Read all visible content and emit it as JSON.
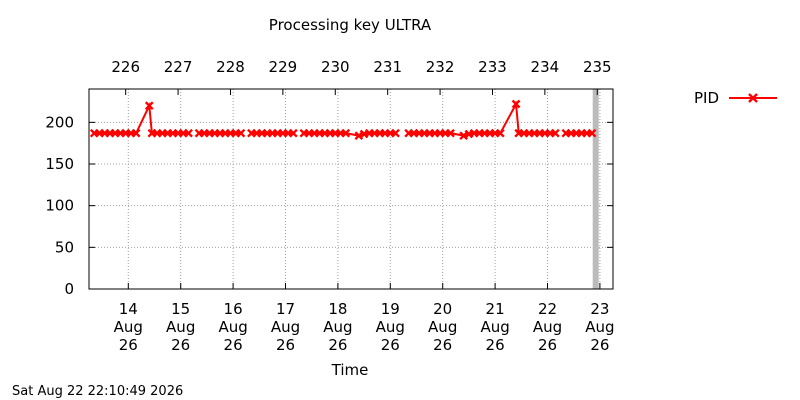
{
  "chart_data": {
    "type": "line",
    "title": "Processing key ULTRA",
    "xlabel": "Time",
    "ylabel": "",
    "ylim": [
      0,
      240
    ],
    "y_ticks": [
      0,
      50,
      100,
      150,
      200
    ],
    "xlim": [
      13.25,
      23.25
    ],
    "grid": true,
    "legend_position": "right",
    "x_ticks_bottom": [
      {
        "x": 14,
        "day": "14",
        "month": "Aug",
        "year": "26"
      },
      {
        "x": 15,
        "day": "15",
        "month": "Aug",
        "year": "26"
      },
      {
        "x": 16,
        "day": "16",
        "month": "Aug",
        "year": "26"
      },
      {
        "x": 17,
        "day": "17",
        "month": "Aug",
        "year": "26"
      },
      {
        "x": 18,
        "day": "18",
        "month": "Aug",
        "year": "26"
      },
      {
        "x": 19,
        "day": "19",
        "month": "Aug",
        "year": "26"
      },
      {
        "x": 20,
        "day": "20",
        "month": "Aug",
        "year": "26"
      },
      {
        "x": 21,
        "day": "21",
        "month": "Aug",
        "year": "26"
      },
      {
        "x": 22,
        "day": "22",
        "month": "Aug",
        "year": "26"
      },
      {
        "x": 23,
        "day": "23",
        "month": "Aug",
        "year": "26"
      }
    ],
    "x_ticks_top": [
      {
        "x": 13.95,
        "label": "226"
      },
      {
        "x": 14.95,
        "label": "227"
      },
      {
        "x": 15.95,
        "label": "228"
      },
      {
        "x": 16.95,
        "label": "229"
      },
      {
        "x": 17.95,
        "label": "230"
      },
      {
        "x": 18.95,
        "label": "231"
      },
      {
        "x": 19.95,
        "label": "232"
      },
      {
        "x": 20.95,
        "label": "233"
      },
      {
        "x": 21.95,
        "label": "234"
      },
      {
        "x": 22.95,
        "label": "235"
      }
    ],
    "current_time_x": 22.92,
    "series": [
      {
        "name": "PID",
        "color": "#ff0000",
        "marker": "x",
        "segments": [
          [
            [
              13.35,
              187
            ],
            [
              13.45,
              187
            ],
            [
              13.55,
              187
            ],
            [
              13.65,
              187
            ],
            [
              13.75,
              187
            ],
            [
              13.85,
              187
            ],
            [
              13.95,
              187
            ],
            [
              14.05,
              187
            ],
            [
              14.15,
              187
            ],
            [
              14.4,
              220
            ],
            [
              14.45,
              187
            ],
            [
              14.55,
              187
            ],
            [
              14.65,
              187
            ],
            [
              14.75,
              187
            ],
            [
              14.85,
              187
            ],
            [
              14.95,
              187
            ],
            [
              15.05,
              187
            ],
            [
              15.15,
              187
            ]
          ],
          [
            [
              15.35,
              187
            ],
            [
              15.45,
              187
            ],
            [
              15.55,
              187
            ],
            [
              15.65,
              187
            ],
            [
              15.75,
              187
            ],
            [
              15.85,
              187
            ],
            [
              15.95,
              187
            ],
            [
              16.05,
              187
            ],
            [
              16.15,
              187
            ]
          ],
          [
            [
              16.35,
              187
            ],
            [
              16.45,
              187
            ],
            [
              16.55,
              187
            ],
            [
              16.65,
              187
            ],
            [
              16.75,
              187
            ],
            [
              16.85,
              187
            ],
            [
              16.95,
              187
            ],
            [
              17.05,
              187
            ],
            [
              17.15,
              187
            ]
          ],
          [
            [
              17.35,
              187
            ],
            [
              17.45,
              187
            ],
            [
              17.55,
              187
            ],
            [
              17.65,
              187
            ],
            [
              17.75,
              187
            ],
            [
              17.85,
              187
            ],
            [
              17.95,
              187
            ],
            [
              18.05,
              187
            ],
            [
              18.15,
              187
            ],
            [
              18.4,
              184
            ],
            [
              18.5,
              186
            ],
            [
              18.6,
              187
            ],
            [
              18.7,
              187
            ],
            [
              18.8,
              187
            ],
            [
              18.9,
              187
            ],
            [
              19.0,
              187
            ],
            [
              19.1,
              187
            ]
          ],
          [
            [
              19.35,
              187
            ],
            [
              19.45,
              187
            ],
            [
              19.55,
              187
            ],
            [
              19.65,
              187
            ],
            [
              19.75,
              187
            ],
            [
              19.85,
              187
            ],
            [
              19.95,
              187
            ],
            [
              20.05,
              187
            ],
            [
              20.15,
              187
            ],
            [
              20.4,
              184
            ],
            [
              20.5,
              186
            ],
            [
              20.6,
              187
            ],
            [
              20.7,
              187
            ],
            [
              20.8,
              187
            ],
            [
              20.9,
              187
            ],
            [
              21.0,
              187
            ],
            [
              21.1,
              187
            ],
            [
              21.4,
              222
            ],
            [
              21.45,
              187
            ],
            [
              21.55,
              187
            ],
            [
              21.65,
              187
            ],
            [
              21.75,
              187
            ],
            [
              21.85,
              187
            ],
            [
              21.95,
              187
            ],
            [
              22.05,
              187
            ],
            [
              22.15,
              187
            ]
          ],
          [
            [
              22.35,
              187
            ],
            [
              22.45,
              187
            ],
            [
              22.55,
              187
            ],
            [
              22.65,
              187
            ],
            [
              22.75,
              187
            ],
            [
              22.85,
              187
            ]
          ]
        ]
      }
    ]
  },
  "footer": {
    "timestamp": "Sat Aug 22 22:10:49 2026"
  }
}
